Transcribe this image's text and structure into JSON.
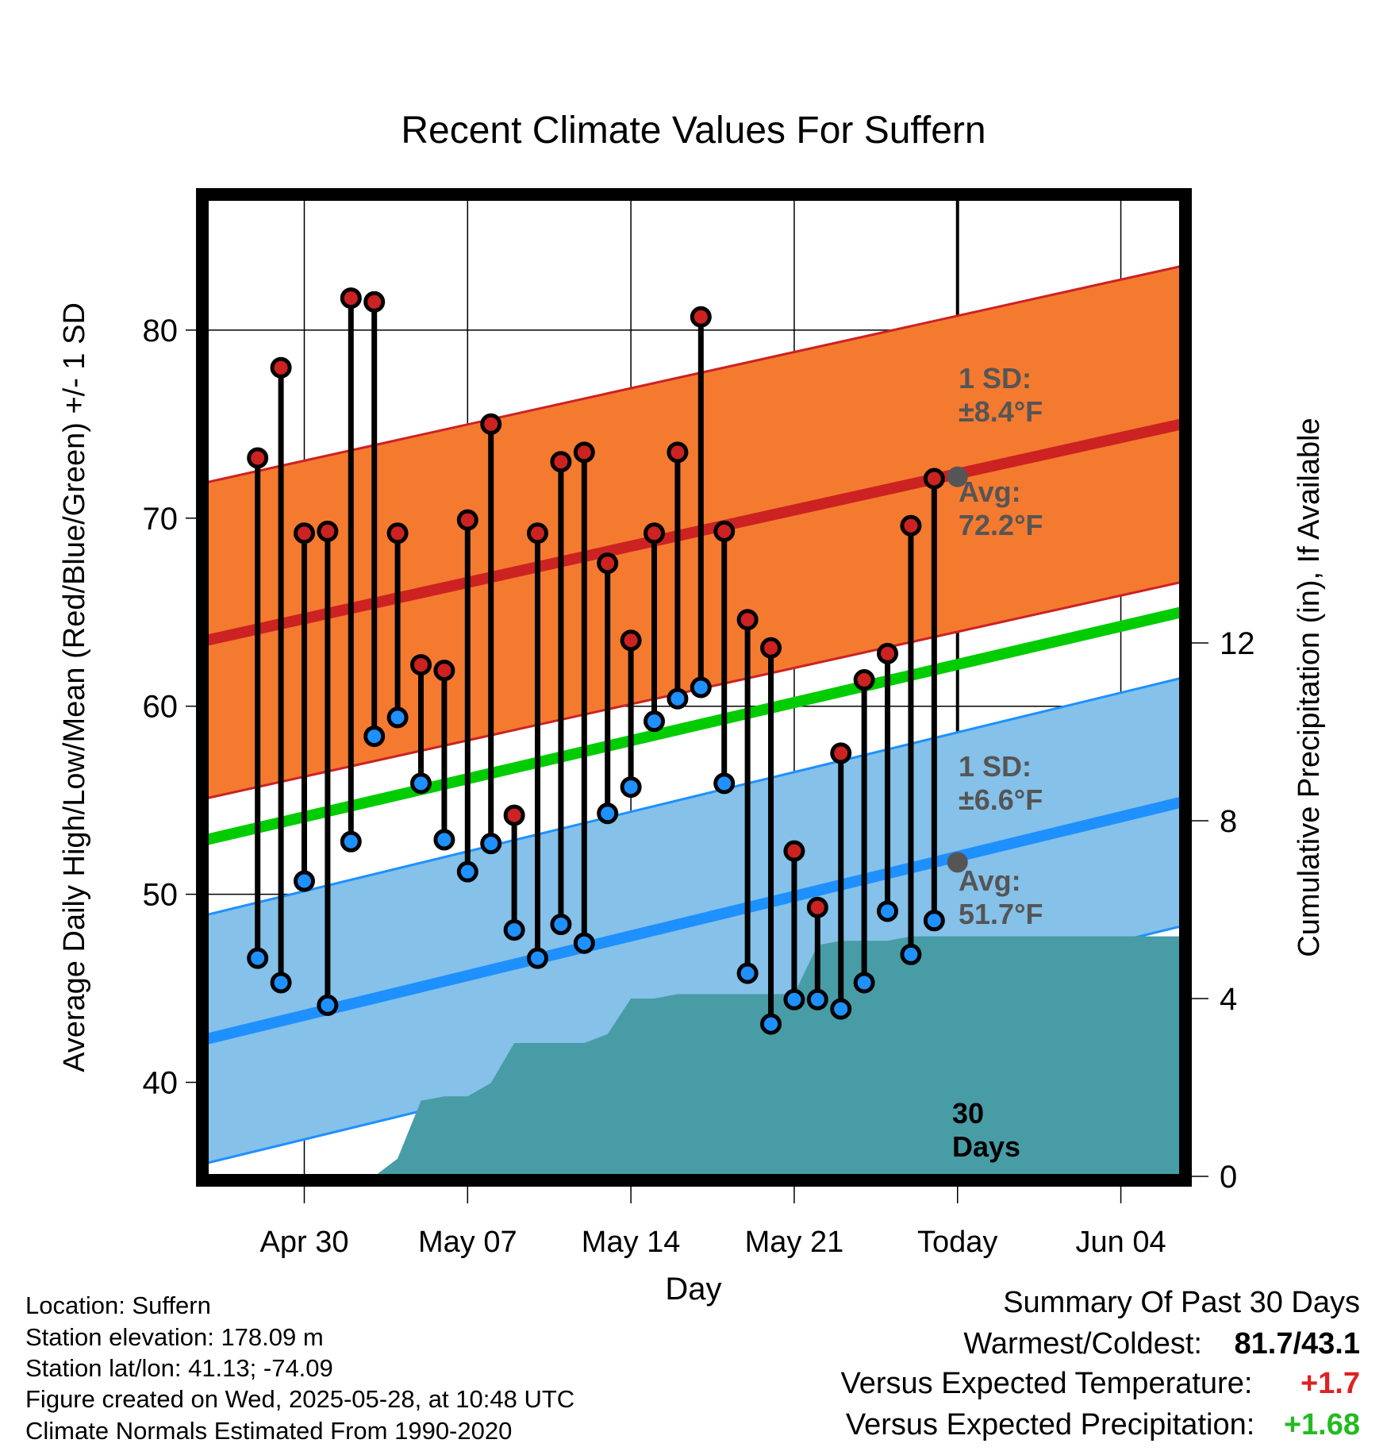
{
  "chart_data": {
    "type": "line",
    "title": "Recent Climate Values For Suffern",
    "xlabel": "Day",
    "ylabel": "Average Daily High/Low/Mean (Red/Blue/Green) +/- 1 SD",
    "y2label": "Cumulative Precipitation (in), If Available",
    "ylim": [
      35,
      87
    ],
    "y2lim": [
      0,
      22
    ],
    "x_range_days": [
      -32.2,
      9.6
    ],
    "x_ticks": [
      {
        "day": -28,
        "label": "Apr 30"
      },
      {
        "day": -21,
        "label": "May 07"
      },
      {
        "day": -14,
        "label": "May 14"
      },
      {
        "day": -7,
        "label": "May 21"
      },
      {
        "day": 0,
        "label": "Today"
      },
      {
        "day": 7,
        "label": "Jun 04"
      }
    ],
    "y_ticks": [
      40,
      50,
      60,
      70,
      80
    ],
    "y2_ticks": [
      0,
      4,
      8,
      12
    ],
    "grid": true,
    "colors": {
      "high": "#cc2222",
      "low": "#1e90ff",
      "mean": "#00cc00",
      "high_band": "#f47a30",
      "low_band": "#85c1e9",
      "precip": "#489ca6"
    },
    "normal_high": {
      "start": 63.5,
      "end": 75.0
    },
    "normal_high_sd": 8.4,
    "normal_low": {
      "start": 42.3,
      "end": 54.9
    },
    "normal_low_sd": 6.6,
    "normal_mean": {
      "start": 52.9,
      "end": 65.0
    },
    "highs": [
      73.2,
      78.0,
      69.2,
      69.3,
      81.7,
      81.5,
      69.2,
      62.2,
      61.9,
      69.9,
      75.0,
      54.2,
      69.2,
      73.0,
      73.5,
      67.6,
      63.5,
      69.2,
      73.5,
      80.7,
      69.3,
      64.6,
      63.1,
      52.3,
      49.3,
      57.5,
      61.4,
      62.8,
      69.6,
      72.1
    ],
    "lows": [
      46.6,
      45.3,
      50.7,
      44.1,
      52.8,
      58.4,
      59.4,
      55.9,
      52.9,
      51.2,
      52.7,
      48.1,
      46.6,
      48.4,
      47.4,
      54.3,
      55.7,
      59.2,
      60.4,
      61.0,
      55.9,
      45.8,
      43.1,
      44.4,
      44.4,
      43.9,
      45.3,
      49.1,
      46.8,
      48.6
    ],
    "precip_cumulative": [
      0,
      0,
      0,
      0,
      0,
      0,
      0.4,
      1.7,
      1.8,
      1.8,
      2.1,
      3.0,
      3.0,
      3.0,
      3.0,
      3.2,
      4.0,
      4.0,
      4.1,
      4.1,
      4.1,
      4.1,
      4.1,
      4.1,
      5.2,
      5.3,
      5.3,
      5.3,
      5.4,
      5.4,
      5.4
    ],
    "precip_extended": 5.4,
    "today_high_normal": 72.2,
    "today_low_normal": 51.7,
    "annotations": {
      "high_sd": [
        "1 SD:",
        "±8.4°F"
      ],
      "high_avg": [
        "Avg:",
        "72.2°F"
      ],
      "low_sd": [
        "1 SD:",
        "±6.6°F"
      ],
      "low_avg": [
        "Avg:",
        "51.7°F"
      ],
      "days": [
        "30",
        "Days"
      ]
    }
  },
  "footer": {
    "location": "Location: Suffern",
    "elevation": "Station elevation: 178.09 m",
    "latlon": "Station lat/lon: 41.13; -74.09",
    "created": "Figure created on Wed, 2025-05-28, at 10:48 UTC",
    "normals": "Climate Normals Estimated From 1990-2020"
  },
  "summary": {
    "heading": "Summary Of Past 30 Days",
    "warmest_label": "Warmest/Coldest:",
    "warmest_value": "81.7/43.1",
    "temp_label": "Versus Expected Temperature:",
    "temp_value": "+1.7",
    "temp_color": "#dd2222",
    "precip_label": "Versus Expected Precipitation:",
    "precip_value": "+1.68",
    "precip_color": "#22bb22"
  }
}
